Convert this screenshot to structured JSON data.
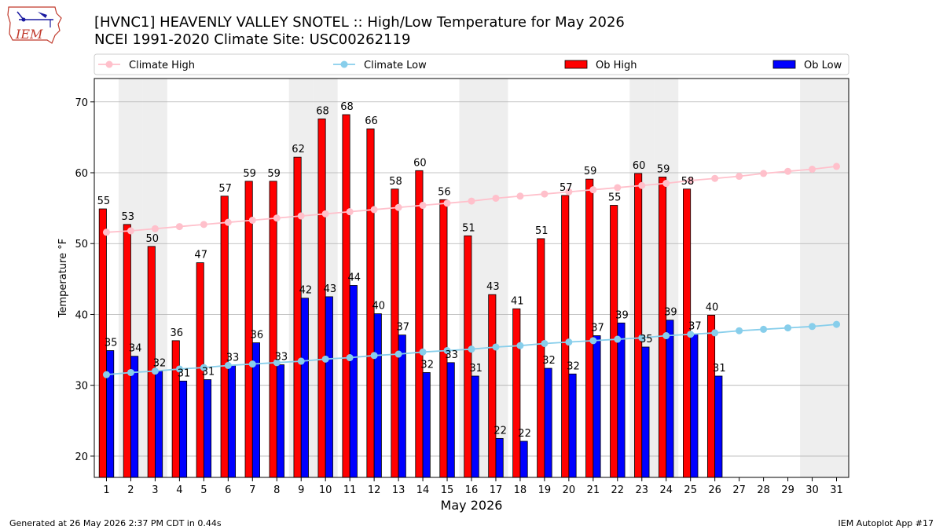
{
  "header": {
    "title_line1": "[HVNC1] HEAVENLY VALLEY SNOTEL :: High/Low Temperature for May 2026",
    "title_line2": "NCEI 1991-2020 Climate Site: USC00262119",
    "logo_text": "IEM"
  },
  "footer": {
    "left": "Generated at 26 May 2026 2:37 PM CDT in 0.44s",
    "right": "IEM Autoplot App #17"
  },
  "colors": {
    "ob_high": "#ff0000",
    "ob_low": "#0000ff",
    "climate_high": "#ffc0cb",
    "climate_low": "#87ceeb",
    "weekend_band": "#eeeeee",
    "grid": "#b0b0b0"
  },
  "chart_data": {
    "type": "bar",
    "title": "[HVNC1] HEAVENLY VALLEY SNOTEL :: High/Low Temperature for May 2026",
    "subtitle": "NCEI 1991-2020 Climate Site: USC00262119",
    "xlabel": "May 2026",
    "ylabel": "Temperature °F",
    "ylim": [
      17,
      73.3
    ],
    "yticks": [
      20,
      30,
      40,
      50,
      60,
      70
    ],
    "grid": "horizontal",
    "legend_placement": "top",
    "categories": [
      "1",
      "2",
      "3",
      "4",
      "5",
      "6",
      "7",
      "8",
      "9",
      "10",
      "11",
      "12",
      "13",
      "14",
      "15",
      "16",
      "17",
      "18",
      "19",
      "20",
      "21",
      "22",
      "23",
      "24",
      "25",
      "26",
      "27",
      "28",
      "29",
      "30",
      "31"
    ],
    "weekend_days": [
      2,
      3,
      9,
      10,
      16,
      17,
      23,
      24,
      30,
      31
    ],
    "legend": [
      "Climate High",
      "Climate Low",
      "Ob High",
      "Ob Low"
    ],
    "series": [
      {
        "name": "Ob High",
        "kind": "bar",
        "values": [
          55,
          53,
          50,
          36,
          47,
          57,
          59,
          59,
          62,
          68,
          68,
          66,
          58,
          60,
          56,
          51,
          43,
          41,
          51,
          57,
          59,
          55,
          60,
          59,
          58,
          40,
          null,
          null,
          null,
          null,
          null
        ],
        "plotted": [
          54.9,
          52.7,
          49.6,
          36.3,
          47.3,
          56.7,
          58.8,
          58.8,
          62.2,
          67.6,
          68.2,
          66.2,
          57.7,
          60.3,
          56.2,
          51.1,
          42.8,
          40.8,
          50.7,
          56.8,
          59.1,
          55.4,
          59.9,
          59.4,
          57.7,
          39.9,
          null,
          null,
          null,
          null,
          null
        ]
      },
      {
        "name": "Ob Low",
        "kind": "bar",
        "values": [
          35,
          34,
          32,
          31,
          31,
          33,
          36,
          33,
          42,
          43,
          44,
          40,
          37,
          32,
          33,
          31,
          22,
          22,
          32,
          32,
          37,
          39,
          35,
          39,
          37,
          31,
          null,
          null,
          null,
          null,
          null
        ],
        "plotted": [
          34.9,
          34.1,
          32.0,
          30.6,
          30.8,
          32.8,
          36.0,
          32.9,
          42.3,
          42.5,
          44.1,
          40.1,
          37.1,
          31.8,
          33.2,
          31.3,
          22.5,
          22.1,
          32.4,
          31.6,
          37.0,
          38.8,
          35.4,
          39.2,
          37.2,
          31.3,
          null,
          null,
          null,
          null,
          null
        ]
      },
      {
        "name": "Climate High",
        "kind": "line",
        "values": [
          51.6,
          51.8,
          52.1,
          52.4,
          52.7,
          53.0,
          53.3,
          53.6,
          53.9,
          54.2,
          54.5,
          54.8,
          55.1,
          55.4,
          55.7,
          56.0,
          56.4,
          56.7,
          57.0,
          57.3,
          57.6,
          57.9,
          58.2,
          58.5,
          58.9,
          59.2,
          59.5,
          59.9,
          60.2,
          60.5,
          60.9
        ]
      },
      {
        "name": "Climate Low",
        "kind": "line",
        "values": [
          31.5,
          31.8,
          32.0,
          32.3,
          32.5,
          32.8,
          33.0,
          33.2,
          33.4,
          33.7,
          33.9,
          34.2,
          34.4,
          34.7,
          34.9,
          35.1,
          35.4,
          35.6,
          35.9,
          36.1,
          36.3,
          36.5,
          36.7,
          37.0,
          37.2,
          37.4,
          37.7,
          37.9,
          38.1,
          38.3,
          38.6
        ]
      }
    ]
  }
}
